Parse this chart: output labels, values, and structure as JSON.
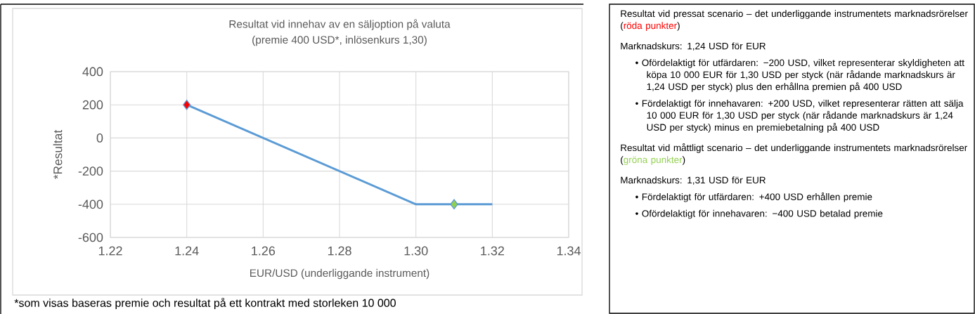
{
  "chart_data": {
    "type": "line",
    "title": "Resultat vid innehav av en säljoption på valuta",
    "subtitle": "(premie 400 USD*, inlösenkurs 1,30)",
    "xlabel": "EUR/USD (underliggande instrument)",
    "ylabel": "*Resultat",
    "series": [
      {
        "color": "#5b9bd5",
        "x": [
          1.24,
          1.3,
          1.32
        ],
        "values": [
          200,
          -400,
          -400
        ],
        "marker": "none"
      },
      {
        "type": "scatter",
        "color": "#ff0000",
        "x": [
          1.24
        ],
        "values": [
          200
        ],
        "marker": "diamond"
      },
      {
        "type": "scatter",
        "color": "#92d050",
        "x": [
          1.31
        ],
        "values": [
          -400
        ],
        "marker": "diamond"
      }
    ],
    "xlim": [
      1.22,
      1.34
    ],
    "ylim": [
      -600,
      400
    ],
    "xticks": [
      1.22,
      1.24,
      1.26,
      1.28,
      {
        "value": 1.3,
        "label": "1.30"
      },
      1.32,
      1.34
    ],
    "yticks": [
      -600,
      -400,
      -200,
      0,
      200,
      400
    ],
    "grid": true,
    "annotations": [
      "Resultat vid pressat scenario – det underliggande instrumentets marknadsrörelser (",
      "röda punkter",
      ")",
      "Marknadskurs: 1,24 USD för EUR",
      "• Ofördelaktigt för utfärdaren: −200 USD, vilket representerar skyldigheten att köpa 10 000 EUR för 1,30 USD per styck (när rådande marknadskurs är 1,24 USD per styck) plus den erhållna premien på 400 USD",
      "• Fördelaktigt för innehavaren: +200 USD, vilket representerar rätten att sälja 10 000 EUR för 1,30 USD per styck (när rådande marknadskurs är 1,24 USD per styck) minus en premiebetalning på 400 USD",
      "Resultat vid måttligt scenario – det underliggande instrumentets marknadsrörelser (",
      "gröna punkter",
      ")",
      "Marknadskurs: 1,31 USD för EUR",
      "• Fördelaktigt för utfärdaren: +400 USD erhållen premie",
      "• Ofördelaktigt för innehavaren: −400 USD betalad premie",
      "*som visas baseras premie och resultat på ett kontrakt med storleken 10 000"
    ]
  }
}
